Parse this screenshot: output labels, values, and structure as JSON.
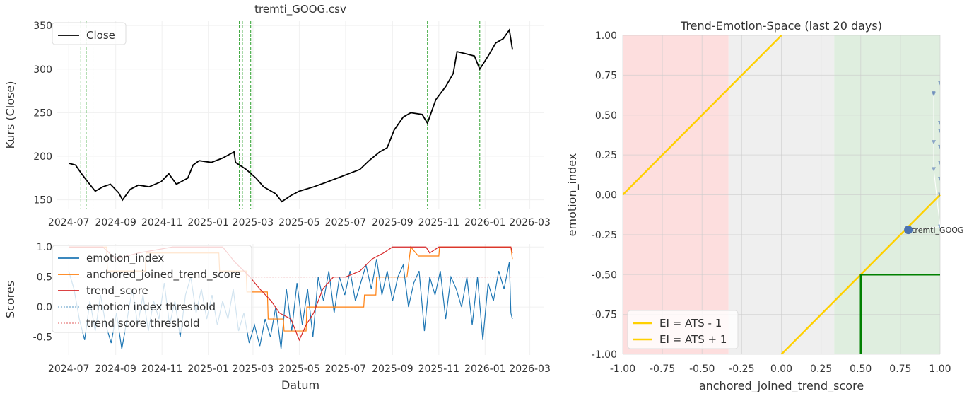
{
  "chart_data": [
    {
      "type": "line",
      "title": "tremti_GOOG.csv",
      "xlabel": "",
      "ylabel": "Kurs (Close)",
      "ylim": [
        140,
        355
      ],
      "xlim": [
        "2024-06-15",
        "2026-03-20"
      ],
      "xticks": [
        "2024-07",
        "2024-09",
        "2024-11",
        "2025-01",
        "2025-03",
        "2025-05",
        "2025-07",
        "2025-09",
        "2025-11",
        "2026-01",
        "2026-03"
      ],
      "yticks": [
        150,
        200,
        250,
        300,
        350
      ],
      "grid": true,
      "legend": "top-left",
      "series": [
        {
          "name": "Close",
          "color": "#000000",
          "points": [
            [
              "2024-07-01",
              192
            ],
            [
              "2024-07-10",
              190
            ],
            [
              "2024-07-18",
              180
            ],
            [
              "2024-07-25",
              172
            ],
            [
              "2024-08-05",
              160
            ],
            [
              "2024-08-15",
              165
            ],
            [
              "2024-08-25",
              168
            ],
            [
              "2024-09-05",
              158
            ],
            [
              "2024-09-10",
              150
            ],
            [
              "2024-09-20",
              162
            ],
            [
              "2024-10-01",
              167
            ],
            [
              "2024-10-15",
              165
            ],
            [
              "2024-10-31",
              171
            ],
            [
              "2024-11-10",
              180
            ],
            [
              "2024-11-20",
              168
            ],
            [
              "2024-12-05",
              175
            ],
            [
              "2024-12-12",
              190
            ],
            [
              "2024-12-20",
              195
            ],
            [
              "2025-01-05",
              193
            ],
            [
              "2025-01-20",
              198
            ],
            [
              "2025-02-04",
              205
            ],
            [
              "2025-02-06",
              193
            ],
            [
              "2025-02-20",
              185
            ],
            [
              "2025-03-05",
              175
            ],
            [
              "2025-03-15",
              165
            ],
            [
              "2025-03-31",
              157
            ],
            [
              "2025-04-08",
              148
            ],
            [
              "2025-04-20",
              155
            ],
            [
              "2025-05-01",
              160
            ],
            [
              "2025-05-20",
              165
            ],
            [
              "2025-06-05",
              170
            ],
            [
              "2025-06-20",
              175
            ],
            [
              "2025-07-05",
              180
            ],
            [
              "2025-07-20",
              185
            ],
            [
              "2025-08-01",
              195
            ],
            [
              "2025-08-15",
              205
            ],
            [
              "2025-08-25",
              210
            ],
            [
              "2025-09-03",
              230
            ],
            [
              "2025-09-15",
              245
            ],
            [
              "2025-09-25",
              250
            ],
            [
              "2025-10-10",
              248
            ],
            [
              "2025-10-17",
              238
            ],
            [
              "2025-10-28",
              265
            ],
            [
              "2025-11-10",
              280
            ],
            [
              "2025-11-20",
              295
            ],
            [
              "2025-11-25",
              320
            ],
            [
              "2025-12-05",
              318
            ],
            [
              "2025-12-18",
              315
            ],
            [
              "2025-12-25",
              300
            ],
            [
              "2026-01-05",
              315
            ],
            [
              "2026-01-15",
              330
            ],
            [
              "2026-01-25",
              335
            ],
            [
              "2026-02-02",
              345
            ],
            [
              "2026-02-06",
              323
            ]
          ]
        }
      ],
      "vlines": {
        "color": "#2ca02c",
        "dates": [
          "2024-07-17",
          "2024-07-24",
          "2024-08-02",
          "2025-02-11",
          "2025-02-15",
          "2025-02-26",
          "2025-10-17",
          "2025-12-25"
        ]
      }
    },
    {
      "type": "line",
      "title": "",
      "xlabel": "Datum",
      "ylabel": "Scores",
      "ylim": [
        -0.8,
        1.05
      ],
      "xlim": [
        "2024-06-15",
        "2026-03-20"
      ],
      "xticks": [
        "2024-07",
        "2024-09",
        "2024-11",
        "2025-01",
        "2025-03",
        "2025-05",
        "2025-07",
        "2025-09",
        "2025-11",
        "2026-01",
        "2026-03"
      ],
      "yticks": [
        -0.5,
        0.0,
        0.5,
        1.0
      ],
      "grid": true,
      "legend": "top-left",
      "series": [
        {
          "name": "emotion_index",
          "color": "#1f77b4",
          "points": [
            [
              "2024-07-01",
              0.6
            ],
            [
              "2024-07-08",
              0.3
            ],
            [
              "2024-07-15",
              -0.2
            ],
            [
              "2024-07-22",
              -0.55
            ],
            [
              "2024-07-29",
              0.1
            ],
            [
              "2024-08-05",
              -0.4
            ],
            [
              "2024-08-12",
              0.2
            ],
            [
              "2024-08-19",
              -0.3
            ],
            [
              "2024-08-26",
              -0.6
            ],
            [
              "2024-09-02",
              -0.1
            ],
            [
              "2024-09-09",
              -0.7
            ],
            [
              "2024-09-16",
              -0.2
            ],
            [
              "2024-09-23",
              0.3
            ],
            [
              "2024-09-30",
              -0.3
            ],
            [
              "2024-10-07",
              0.2
            ],
            [
              "2024-10-14",
              -0.4
            ],
            [
              "2024-10-21",
              0.1
            ],
            [
              "2024-10-28",
              -0.2
            ],
            [
              "2024-11-04",
              0.4
            ],
            [
              "2024-11-11",
              -0.3
            ],
            [
              "2024-11-18",
              0.1
            ],
            [
              "2024-11-25",
              -0.5
            ],
            [
              "2024-12-02",
              0.2
            ],
            [
              "2024-12-09",
              0.5
            ],
            [
              "2024-12-16",
              -0.1
            ],
            [
              "2024-12-23",
              0.3
            ],
            [
              "2024-12-30",
              -0.2
            ],
            [
              "2025-01-06",
              0.2
            ],
            [
              "2025-01-13",
              -0.3
            ],
            [
              "2025-01-20",
              0.1
            ],
            [
              "2025-01-27",
              -0.2
            ],
            [
              "2025-02-03",
              0.3
            ],
            [
              "2025-02-10",
              -0.4
            ],
            [
              "2025-02-17",
              -0.1
            ],
            [
              "2025-02-24",
              -0.6
            ],
            [
              "2025-03-03",
              -0.3
            ],
            [
              "2025-03-10",
              -0.65
            ],
            [
              "2025-03-17",
              -0.2
            ],
            [
              "2025-03-24",
              -0.5
            ],
            [
              "2025-03-31",
              0.0
            ],
            [
              "2025-04-07",
              -0.7
            ],
            [
              "2025-04-14",
              0.3
            ],
            [
              "2025-04-21",
              -0.4
            ],
            [
              "2025-04-28",
              0.4
            ],
            [
              "2025-05-05",
              -0.3
            ],
            [
              "2025-05-12",
              0.3
            ],
            [
              "2025-05-19",
              -0.5
            ],
            [
              "2025-05-26",
              0.5
            ],
            [
              "2025-06-02",
              0.1
            ],
            [
              "2025-06-09",
              0.6
            ],
            [
              "2025-06-16",
              -0.1
            ],
            [
              "2025-06-23",
              0.5
            ],
            [
              "2025-06-30",
              0.2
            ],
            [
              "2025-07-07",
              0.6
            ],
            [
              "2025-07-14",
              0.1
            ],
            [
              "2025-07-21",
              0.4
            ],
            [
              "2025-07-28",
              0.7
            ],
            [
              "2025-08-04",
              0.3
            ],
            [
              "2025-08-11",
              0.8
            ],
            [
              "2025-08-18",
              0.2
            ],
            [
              "2025-08-25",
              0.6
            ],
            [
              "2025-09-01",
              0.1
            ],
            [
              "2025-09-08",
              0.5
            ],
            [
              "2025-09-15",
              0.7
            ],
            [
              "2025-09-22",
              0.0
            ],
            [
              "2025-09-29",
              0.4
            ],
            [
              "2025-10-06",
              0.6
            ],
            [
              "2025-10-13",
              -0.4
            ],
            [
              "2025-10-20",
              0.5
            ],
            [
              "2025-10-27",
              0.2
            ],
            [
              "2025-11-03",
              0.6
            ],
            [
              "2025-11-10",
              -0.2
            ],
            [
              "2025-11-17",
              0.5
            ],
            [
              "2025-11-24",
              0.3
            ],
            [
              "2025-12-01",
              0.0
            ],
            [
              "2025-12-08",
              0.5
            ],
            [
              "2025-12-15",
              -0.3
            ],
            [
              "2025-12-22",
              0.5
            ],
            [
              "2025-12-29",
              -0.55
            ],
            [
              "2026-01-05",
              0.4
            ],
            [
              "2026-01-12",
              0.1
            ],
            [
              "2026-01-19",
              0.6
            ],
            [
              "2026-01-26",
              0.3
            ],
            [
              "2026-02-02",
              0.75
            ],
            [
              "2026-02-04",
              -0.1
            ],
            [
              "2026-02-06",
              -0.2
            ]
          ]
        },
        {
          "name": "anchored_joined_trend_score",
          "color": "#ff7f0e",
          "points": [
            [
              "2024-07-01",
              1.0
            ],
            [
              "2024-08-20",
              1.0
            ],
            [
              "2024-08-21",
              0.6
            ],
            [
              "2024-10-10",
              0.6
            ],
            [
              "2024-10-11",
              0.9
            ],
            [
              "2025-01-15",
              0.9
            ],
            [
              "2025-01-16",
              0.6
            ],
            [
              "2025-02-20",
              0.6
            ],
            [
              "2025-02-21",
              0.25
            ],
            [
              "2025-03-20",
              0.25
            ],
            [
              "2025-03-21",
              -0.2
            ],
            [
              "2025-04-10",
              -0.2
            ],
            [
              "2025-04-11",
              -0.4
            ],
            [
              "2025-05-10",
              -0.4
            ],
            [
              "2025-05-11",
              0.0
            ],
            [
              "2025-07-25",
              0.0
            ],
            [
              "2025-07-26",
              0.2
            ],
            [
              "2025-08-10",
              0.2
            ],
            [
              "2025-08-11",
              0.5
            ],
            [
              "2025-09-20",
              0.5
            ],
            [
              "2025-09-25",
              1.0
            ],
            [
              "2025-10-05",
              0.85
            ],
            [
              "2025-11-01",
              0.85
            ],
            [
              "2025-11-02",
              1.0
            ],
            [
              "2026-02-04",
              1.0
            ],
            [
              "2026-02-06",
              0.8
            ]
          ]
        },
        {
          "name": "trend_score",
          "color": "#d62728",
          "points": [
            [
              "2024-07-01",
              1.0
            ],
            [
              "2024-08-15",
              1.0
            ],
            [
              "2024-09-01",
              0.8
            ],
            [
              "2024-10-01",
              0.9
            ],
            [
              "2024-11-15",
              1.0
            ],
            [
              "2025-01-01",
              1.0
            ],
            [
              "2025-01-20",
              1.0
            ],
            [
              "2025-02-05",
              0.75
            ],
            [
              "2025-02-25",
              0.5
            ],
            [
              "2025-03-10",
              0.3
            ],
            [
              "2025-03-25",
              0.1
            ],
            [
              "2025-04-05",
              -0.1
            ],
            [
              "2025-04-20",
              -0.2
            ],
            [
              "2025-05-01",
              -0.55
            ],
            [
              "2025-05-10",
              -0.3
            ],
            [
              "2025-05-20",
              -0.1
            ],
            [
              "2025-06-01",
              0.3
            ],
            [
              "2025-06-15",
              0.5
            ],
            [
              "2025-07-01",
              0.5
            ],
            [
              "2025-07-20",
              0.6
            ],
            [
              "2025-08-05",
              0.8
            ],
            [
              "2025-08-20",
              0.9
            ],
            [
              "2025-09-01",
              1.0
            ],
            [
              "2025-10-15",
              1.0
            ],
            [
              "2025-10-20",
              0.9
            ],
            [
              "2025-11-01",
              1.0
            ],
            [
              "2026-02-04",
              1.0
            ],
            [
              "2026-02-06",
              0.9
            ]
          ]
        }
      ],
      "thresholds": [
        {
          "name": "emotion index threshold",
          "value": -0.5,
          "color": "#1f77b4"
        },
        {
          "name": "trend score threshold",
          "value": 0.5,
          "color": "#d62728"
        }
      ]
    },
    {
      "type": "scatter",
      "title": "Trend-Emotion-Space (last 20 days)",
      "xlabel": "anchored_joined_trend_score",
      "ylabel": "emotion_index",
      "xlim": [
        -1,
        1
      ],
      "ylim": [
        -1,
        1
      ],
      "xticks": [
        -1.0,
        -0.75,
        -0.5,
        -0.25,
        0.0,
        0.25,
        0.5,
        0.75,
        1.0
      ],
      "yticks": [
        -1.0,
        -0.75,
        -0.5,
        -0.25,
        0.0,
        0.25,
        0.5,
        0.75,
        1.0
      ],
      "grid": true,
      "legend": "bottom-left",
      "regions": [
        {
          "from": -1,
          "to": -0.333,
          "color": "#fddede"
        },
        {
          "from": -0.333,
          "to": 0.333,
          "color": "#efefef"
        },
        {
          "from": 0.333,
          "to": 1,
          "color": "#dfeedf"
        }
      ],
      "lines": [
        {
          "name": "EI = ATS - 1",
          "slope": 1,
          "intercept": -1,
          "color": "#ffd000"
        },
        {
          "name": "EI = ATS + 1",
          "slope": 1,
          "intercept": 1,
          "color": "#ffd000"
        }
      ],
      "box": {
        "x": 0.5,
        "y": -0.5,
        "color": "#008000"
      },
      "trail": [
        [
          0.96,
          0.63
        ],
        [
          0.96,
          0.64
        ],
        [
          0.96,
          0.33
        ],
        [
          0.96,
          0.16
        ],
        [
          1.0,
          0.7
        ],
        [
          1.0,
          0.45
        ],
        [
          1.0,
          0.4
        ],
        [
          1.0,
          0.3
        ],
        [
          1.0,
          0.2
        ],
        [
          1.0,
          0.1
        ],
        [
          1.0,
          0.0
        ],
        [
          1.0,
          -0.2
        ]
      ],
      "point": {
        "label": "tremti_GOOG",
        "x": 0.8,
        "y": -0.22,
        "color": "#4c72b0"
      }
    }
  ]
}
